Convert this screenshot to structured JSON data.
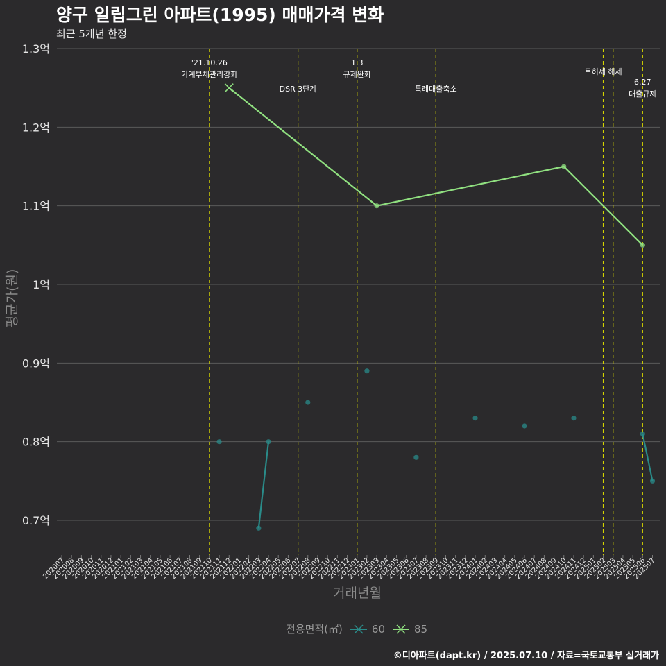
{
  "title": "양구 일립그린 아파트(1995) 매매가격 변화",
  "subtitle": "최근 5개년 한정",
  "caption": "©디아파트(dapt.kr) / 2025.07.10 / 자료=국토교통부 실거래가",
  "colors": {
    "background": "#2b2a2c",
    "grid": "#5a5a5a",
    "event_line": "#d4d400",
    "series_60": "#2a8b89",
    "series_85": "#90e080"
  },
  "chart_data": {
    "type": "line",
    "title": "양구 일립그린 아파트(1995) 매매가격 변화",
    "subtitle": "최근 5개년 한정",
    "xlabel": "거래년월",
    "ylabel": "평균가(원)",
    "ylim": [
      0.66,
      1.3
    ],
    "yticks": [
      {
        "value": 0.7,
        "label": "0.7억"
      },
      {
        "value": 0.8,
        "label": "0.8억"
      },
      {
        "value": 0.9,
        "label": "0.9억"
      },
      {
        "value": 1.0,
        "label": "1억"
      },
      {
        "value": 1.1,
        "label": "1.1억"
      },
      {
        "value": 1.2,
        "label": "1.2억"
      },
      {
        "value": 1.3,
        "label": "1.3억"
      }
    ],
    "categories": [
      "202007",
      "202008",
      "202009",
      "202010",
      "202011",
      "202012",
      "202101",
      "202102",
      "202103",
      "202104",
      "202105",
      "202106",
      "202107",
      "202108",
      "202109",
      "202110",
      "202111",
      "202112",
      "202201",
      "202202",
      "202203",
      "202204",
      "202205",
      "202206",
      "202207",
      "202208",
      "202209",
      "202210",
      "202211",
      "202212",
      "202301",
      "202302",
      "202303",
      "202304",
      "202305",
      "202306",
      "202307",
      "202308",
      "202309",
      "202310",
      "202311",
      "202312",
      "202401",
      "202402",
      "202403",
      "202404",
      "202405",
      "202406",
      "202407",
      "202408",
      "202409",
      "202410",
      "202411",
      "202412",
      "202501",
      "202502",
      "202503",
      "202504",
      "202505",
      "202506",
      "202507"
    ],
    "legend_title": "전용면적(㎡)",
    "series": [
      {
        "name": "60",
        "color": "#2a8b89",
        "points": [
          {
            "x": "202111",
            "y": 0.8
          },
          {
            "x": "202203",
            "y": 0.69
          },
          {
            "x": "202204",
            "y": 0.8
          },
          {
            "x": "202208",
            "y": 0.85
          },
          {
            "x": "202302",
            "y": 0.89
          },
          {
            "x": "202307",
            "y": 0.78
          },
          {
            "x": "202401",
            "y": 0.83
          },
          {
            "x": "202406",
            "y": 0.82
          },
          {
            "x": "202411",
            "y": 0.83
          },
          {
            "x": "202506",
            "y": 0.81
          },
          {
            "x": "202507",
            "y": 0.75
          }
        ],
        "segments": [
          [
            "202203",
            "202204"
          ],
          [
            "202506",
            "202507"
          ]
        ]
      },
      {
        "name": "85",
        "color": "#90e080",
        "points": [
          {
            "x": "202112",
            "y": 1.25,
            "marker": "x"
          },
          {
            "x": "202303",
            "y": 1.1
          },
          {
            "x": "202410",
            "y": 1.15
          },
          {
            "x": "202506",
            "y": 1.05
          }
        ],
        "segments": [
          [
            "202112",
            "202303",
            "202410",
            "202506"
          ]
        ]
      }
    ],
    "events": [
      {
        "x": "202110",
        "lines": [
          "'21.10.26",
          "가계부채관리강화"
        ],
        "row": 0
      },
      {
        "x": "202207",
        "lines": [
          "DSR 3단계"
        ],
        "row": 2
      },
      {
        "x": "202301",
        "lines": [
          "1.3",
          "규제완화"
        ],
        "row": 0
      },
      {
        "x": "202309",
        "lines": [
          "특례대출축소"
        ],
        "row": 2
      },
      {
        "x": "202502",
        "lines": [
          "토허제 해제"
        ],
        "row": 1
      },
      {
        "x": "202503",
        "lines": [],
        "row": 1
      },
      {
        "x": "202506",
        "lines": [
          "6.27",
          "대출규제"
        ],
        "row": 3
      }
    ]
  }
}
